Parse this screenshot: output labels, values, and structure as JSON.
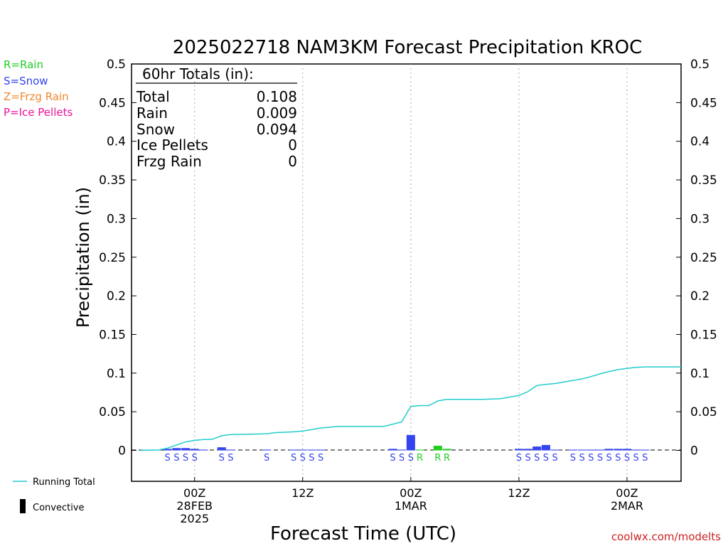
{
  "chart_data": {
    "type": "bar",
    "title": "2025022718 NAM3KM Forecast Precipitation KROC",
    "xlabel": "Forecast Time (UTC)",
    "ylabel": "Precipitation (in)",
    "ylim": [
      -0.04,
      0.5
    ],
    "y_ticks": [
      0,
      0.05,
      0.1,
      0.15,
      0.2,
      0.25,
      0.3,
      0.35,
      0.4,
      0.45,
      0.5
    ],
    "y_tick_labels": [
      "0",
      "0.05",
      "0.1",
      "0.15",
      "0.2",
      "0.25",
      "0.3",
      "0.35",
      "0.4",
      "0.45",
      "0.5"
    ],
    "x_unit": "forecast hour",
    "xlim": [
      -1,
      60
    ],
    "x_ticks": [
      {
        "hour": 6,
        "lines": [
          "00Z",
          "28FEB",
          "2025"
        ]
      },
      {
        "hour": 18,
        "lines": [
          "12Z"
        ]
      },
      {
        "hour": 30,
        "lines": [
          "00Z",
          "1MAR"
        ]
      },
      {
        "hour": 42,
        "lines": [
          "12Z"
        ]
      },
      {
        "hour": 54,
        "lines": [
          "00Z",
          "2MAR"
        ]
      }
    ],
    "grid": "vertical dotted lines at tick hours",
    "key_legend": [
      {
        "text": "R=Rain",
        "color": "#22cc22"
      },
      {
        "text": "S=Snow",
        "color": "#3344ee"
      },
      {
        "text": "Z=Frzg Rain",
        "color": "#ee8833"
      },
      {
        "text": "P=Ice Pellets",
        "color": "#ee1199"
      }
    ],
    "series_legend": [
      {
        "name": "Running Total",
        "kind": "line",
        "color": "#22cccc"
      },
      {
        "name": "Convective",
        "kind": "bar",
        "color": "#000000"
      }
    ],
    "totals_box": {
      "header": "60hr Totals (in):",
      "rows": [
        {
          "label": "Total",
          "value": "0.108"
        },
        {
          "label": "Rain",
          "value": "0.009"
        },
        {
          "label": "Snow",
          "value": "0.094"
        },
        {
          "label": "Ice Pellets",
          "value": "0"
        },
        {
          "label": "Frzg Rain",
          "value": "0"
        }
      ]
    },
    "precip_bars": [
      {
        "hour": 3,
        "value": 0.002,
        "type": "S"
      },
      {
        "hour": 4,
        "value": 0.003,
        "type": "S"
      },
      {
        "hour": 5,
        "value": 0.003,
        "type": "S"
      },
      {
        "hour": 6,
        "value": 0.002,
        "type": "S"
      },
      {
        "hour": 7,
        "value": 0.001,
        "type": "S"
      },
      {
        "hour": 9,
        "value": 0.004,
        "type": "S"
      },
      {
        "hour": 10,
        "value": 0.001,
        "type": "S"
      },
      {
        "hour": 14,
        "value": 0.001,
        "type": "S"
      },
      {
        "hour": 17,
        "value": 0.001,
        "type": "S"
      },
      {
        "hour": 18,
        "value": 0.001,
        "type": "S"
      },
      {
        "hour": 19,
        "value": 0.001,
        "type": "S"
      },
      {
        "hour": 20,
        "value": 0.001,
        "type": "S"
      },
      {
        "hour": 28,
        "value": 0.002,
        "type": "S"
      },
      {
        "hour": 29,
        "value": 0.001,
        "type": "S"
      },
      {
        "hour": 30,
        "value": 0.02,
        "type": "S"
      },
      {
        "hour": 31,
        "value": 0.001,
        "type": "R"
      },
      {
        "hour": 33,
        "value": 0.006,
        "type": "R"
      },
      {
        "hour": 34,
        "value": 0.002,
        "type": "R"
      },
      {
        "hour": 42,
        "value": 0.002,
        "type": "S"
      },
      {
        "hour": 43,
        "value": 0.002,
        "type": "S"
      },
      {
        "hour": 44,
        "value": 0.005,
        "type": "S"
      },
      {
        "hour": 45,
        "value": 0.007,
        "type": "S"
      },
      {
        "hour": 46,
        "value": 0.001,
        "type": "S"
      },
      {
        "hour": 48,
        "value": 0.001,
        "type": "S"
      },
      {
        "hour": 49,
        "value": 0.001,
        "type": "S"
      },
      {
        "hour": 50,
        "value": 0.001,
        "type": "S"
      },
      {
        "hour": 51,
        "value": 0.001,
        "type": "S"
      },
      {
        "hour": 52,
        "value": 0.002,
        "type": "S"
      },
      {
        "hour": 53,
        "value": 0.002,
        "type": "S"
      },
      {
        "hour": 54,
        "value": 0.002,
        "type": "S"
      },
      {
        "hour": 55,
        "value": 0.001,
        "type": "S"
      },
      {
        "hour": 56,
        "value": 0.001,
        "type": "S"
      }
    ],
    "type_labels": [
      {
        "hour": 3,
        "type": "S"
      },
      {
        "hour": 4,
        "type": "S"
      },
      {
        "hour": 5,
        "type": "S"
      },
      {
        "hour": 6,
        "type": "S"
      },
      {
        "hour": 9,
        "type": "S"
      },
      {
        "hour": 10,
        "type": "S"
      },
      {
        "hour": 14,
        "type": "S"
      },
      {
        "hour": 17,
        "type": "S"
      },
      {
        "hour": 18,
        "type": "S"
      },
      {
        "hour": 19,
        "type": "S"
      },
      {
        "hour": 20,
        "type": "S"
      },
      {
        "hour": 28,
        "type": "S"
      },
      {
        "hour": 29,
        "type": "S"
      },
      {
        "hour": 30,
        "type": "S"
      },
      {
        "hour": 31,
        "type": "R"
      },
      {
        "hour": 33,
        "type": "R"
      },
      {
        "hour": 34,
        "type": "R"
      },
      {
        "hour": 42,
        "type": "S"
      },
      {
        "hour": 43,
        "type": "S"
      },
      {
        "hour": 44,
        "type": "S"
      },
      {
        "hour": 45,
        "type": "S"
      },
      {
        "hour": 46,
        "type": "S"
      },
      {
        "hour": 48,
        "type": "S"
      },
      {
        "hour": 49,
        "type": "S"
      },
      {
        "hour": 50,
        "type": "S"
      },
      {
        "hour": 51,
        "type": "S"
      },
      {
        "hour": 52,
        "type": "S"
      },
      {
        "hour": 53,
        "type": "S"
      },
      {
        "hour": 54,
        "type": "S"
      },
      {
        "hour": 55,
        "type": "S"
      },
      {
        "hour": 56,
        "type": "S"
      }
    ],
    "type_colors": {
      "S": "#3344ee",
      "R": "#22cc22",
      "Z": "#ee8833",
      "P": "#ee1199"
    },
    "running_total": {
      "name": "Running Total",
      "color": "#22cccc",
      "points": [
        [
          0,
          0
        ],
        [
          2,
          0.0005
        ],
        [
          3,
          0.003
        ],
        [
          4,
          0.007
        ],
        [
          5,
          0.011
        ],
        [
          6,
          0.013
        ],
        [
          7,
          0.014
        ],
        [
          8,
          0.0145
        ],
        [
          9,
          0.019
        ],
        [
          10,
          0.0205
        ],
        [
          12,
          0.021
        ],
        [
          14,
          0.0215
        ],
        [
          15,
          0.023
        ],
        [
          16,
          0.0235
        ],
        [
          17,
          0.024
        ],
        [
          18,
          0.025
        ],
        [
          19,
          0.027
        ],
        [
          20,
          0.029
        ],
        [
          21,
          0.03
        ],
        [
          22,
          0.031
        ],
        [
          24,
          0.031
        ],
        [
          26,
          0.031
        ],
        [
          27,
          0.031
        ],
        [
          28,
          0.034
        ],
        [
          29,
          0.037
        ],
        [
          30,
          0.057
        ],
        [
          31,
          0.058
        ],
        [
          32,
          0.058
        ],
        [
          33,
          0.064
        ],
        [
          34,
          0.066
        ],
        [
          36,
          0.066
        ],
        [
          38,
          0.066
        ],
        [
          40,
          0.067
        ],
        [
          42,
          0.071
        ],
        [
          43,
          0.076
        ],
        [
          44,
          0.084
        ],
        [
          45,
          0.0855
        ],
        [
          46,
          0.0865
        ],
        [
          48,
          0.0905
        ],
        [
          49,
          0.0925
        ],
        [
          50,
          0.0955
        ],
        [
          51,
          0.099
        ],
        [
          52,
          0.102
        ],
        [
          53,
          0.1045
        ],
        [
          54,
          0.106
        ],
        [
          55,
          0.1075
        ],
        [
          56,
          0.108
        ],
        [
          58,
          0.108
        ],
        [
          60,
          0.108
        ]
      ]
    },
    "credit": "coolwx.com/modelts"
  }
}
